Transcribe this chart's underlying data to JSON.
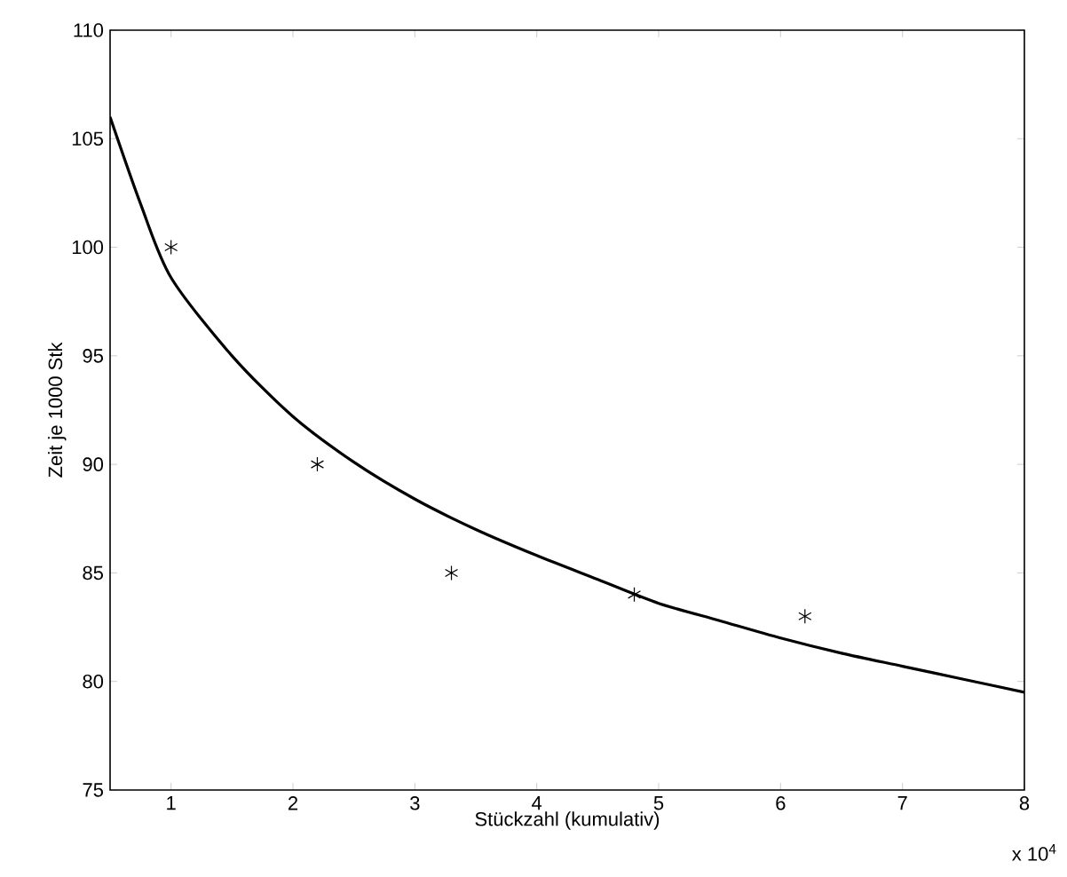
{
  "chart_data": {
    "type": "scatter",
    "xlabel": "Stückzahl (kumulativ)",
    "ylabel": "Zeit je 1000 Stk",
    "annotations": [
      "x 10$^{4}$"
    ],
    "xlim": [
      0.5,
      8
    ],
    "ylim": [
      75,
      110
    ],
    "xticks": [
      1,
      2,
      3,
      4,
      5,
      6,
      7,
      8
    ],
    "yticks": [
      75,
      80,
      85,
      90,
      95,
      100,
      105,
      110
    ],
    "grid": false,
    "series": [
      {
        "marker": "cross",
        "color": "#000000",
        "x": [
          1,
          2.2,
          3.3,
          4.8,
          6.2
        ],
        "values": [
          100,
          90,
          85,
          84,
          83
        ]
      },
      {
        "type": "line",
        "marker": "none",
        "line_style": "solid",
        "color": "#000000",
        "x": [
          0.5,
          0.75,
          1,
          1.5,
          2,
          2.5,
          3,
          3.5,
          4,
          4.5,
          5,
          5.5,
          6,
          6.5,
          7,
          7.5,
          8
        ],
        "values": [
          106,
          102,
          98.6,
          95,
          92.2,
          90.1,
          88.4,
          87.0,
          85.8,
          84.7,
          83.6,
          82.8,
          82.0,
          81.3,
          80.7,
          80.1,
          79.5
        ]
      }
    ]
  }
}
